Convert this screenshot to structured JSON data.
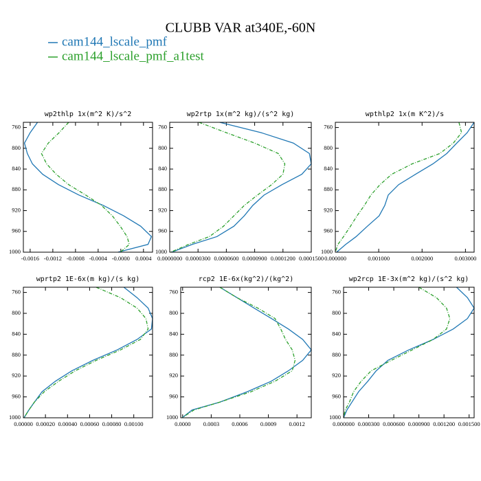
{
  "title": "CLUBB VAR at340E,-60N",
  "legend": [
    {
      "name": "cam144_lscale_pmf",
      "color": "#1f77b4"
    },
    {
      "name": "cam144_lscale_pmf_a1test",
      "color": "#2ca02c"
    }
  ],
  "chart_data": [
    {
      "type": "line",
      "title": "wp2thlp  1x(m^2 K)/s^2",
      "y": [
        750,
        770,
        790,
        810,
        830,
        850,
        870,
        890,
        910,
        930,
        950,
        970,
        985,
        1000
      ],
      "series": [
        {
          "color": "#1f77b4",
          "values": [
            -0.00147,
            -0.0016,
            -0.0017,
            -0.00165,
            -0.00156,
            -0.00138,
            -0.0011,
            -0.00074,
            -0.00031,
            5e-05,
            0.00035,
            0.00054,
            0.00048,
            -5e-05
          ]
        },
        {
          "color": "#2ca02c",
          "linestyle": "dashed",
          "values": [
            -0.00092,
            -0.00109,
            -0.00128,
            -0.0014,
            -0.00131,
            -0.00114,
            -0.00092,
            -0.00062,
            -0.00034,
            -0.00015,
            -1e-05,
            0.00011,
            0.00015,
            -1e-05
          ]
        }
      ],
      "xlim": [
        -0.00172,
        0.00056
      ],
      "xticks": [
        -0.0016,
        -0.0012,
        -0.0008,
        -0.0004,
        {
          "value": 0,
          "label": "-0.0000"
        },
        0.0004
      ],
      "ylim": [
        750,
        1000
      ],
      "yticks": [
        760,
        800,
        840,
        880,
        920,
        960,
        1000
      ],
      "y_inverted": true
    },
    {
      "type": "line",
      "title": "wp2rtp  1x(m^2 kg)/(s^2 kg)",
      "y": [
        750,
        770,
        790,
        810,
        830,
        850,
        870,
        890,
        910,
        930,
        950,
        970,
        985,
        1000
      ],
      "series": [
        {
          "color": "#1f77b4",
          "values": [
            5.3e-05,
            9.7e-05,
            0.000131,
            0.000148,
            0.00015,
            0.00014,
            0.000119,
            0.0001,
            8.8e-05,
            7.9e-05,
            6.8e-05,
            5e-05,
            2.4e-05,
            2e-06
          ]
        },
        {
          "color": "#2ca02c",
          "linestyle": "dashed",
          "values": [
            3.1e-05,
            6e-05,
            9e-05,
            0.000115,
            0.000122,
            0.00012,
            0.000108,
            9.3e-05,
            7.9e-05,
            6.8e-05,
            5.7e-05,
            4.2e-05,
            2e-05,
            1e-06
          ]
        }
      ],
      "xlim": [
        0,
        0.00015
      ],
      "xticks": [
        {
          "value": 0,
          "label": "0.0000000"
        },
        {
          "value": 3e-05,
          "label": "0.0000300"
        },
        {
          "value": 6e-05,
          "label": "0.0000600"
        },
        {
          "value": 9e-05,
          "label": "0.0000900"
        },
        {
          "value": 0.00012,
          "label": "0.0001200"
        },
        {
          "value": 0.00015,
          "label": "0.0001500"
        }
      ],
      "ylim": [
        750,
        1000
      ],
      "yticks": [
        760,
        800,
        840,
        880,
        920,
        960,
        1000
      ],
      "y_inverted": true
    },
    {
      "type": "line",
      "title": "wpthlp2  1x(m K^2)/s",
      "y": [
        750,
        770,
        790,
        810,
        830,
        850,
        870,
        890,
        910,
        930,
        950,
        970,
        985,
        1000
      ],
      "series": [
        {
          "color": "#1f77b4",
          "values": [
            0.0032,
            0.00304,
            0.0028,
            0.00257,
            0.00225,
            0.00185,
            0.00146,
            0.00122,
            0.00114,
            0.00101,
            0.00074,
            0.00048,
            0.00024,
            3e-05
          ]
        },
        {
          "color": "#2ca02c",
          "linestyle": "dashed",
          "values": [
            0.00285,
            0.00291,
            0.00272,
            0.00241,
            0.00177,
            0.0013,
            0.00103,
            0.00082,
            0.00067,
            0.0005,
            0.00035,
            0.00019,
            6e-05,
            0
          ]
        }
      ],
      "xlim": [
        0,
        0.0032
      ],
      "xticks": [
        {
          "value": 0,
          "label": "0.000000"
        },
        {
          "value": 0.001,
          "label": "0.001000"
        },
        {
          "value": 0.002,
          "label": "0.002000"
        },
        {
          "value": 0.003,
          "label": "0.003000"
        }
      ],
      "ylim": [
        750,
        1000
      ],
      "yticks": [
        760,
        800,
        840,
        880,
        920,
        960,
        1000
      ],
      "y_inverted": true
    },
    {
      "type": "line",
      "title": "wprtp2  1E-6x(m kg)/(s kg)",
      "y": [
        750,
        770,
        790,
        810,
        830,
        850,
        870,
        890,
        910,
        930,
        950,
        970,
        985,
        1000
      ],
      "series": [
        {
          "color": "#1f77b4",
          "values": [
            0.00091,
            0.00103,
            0.00113,
            0.00117,
            0.00116,
            0.00103,
            0.00085,
            0.00063,
            0.00044,
            0.00029,
            0.00017,
            0.0001,
            5e-05,
            6e-06
          ]
        },
        {
          "color": "#2ca02c",
          "linestyle": "dashed",
          "values": [
            0.00066,
            0.00088,
            0.00103,
            0.00111,
            0.00113,
            0.00106,
            0.00088,
            0.00066,
            0.00047,
            0.00032,
            0.00019,
            0.0001,
            5e-05,
            6e-06
          ]
        }
      ],
      "xlim": [
        0,
        0.00117
      ],
      "xticks": [
        {
          "value": 0,
          "label": "0.00000"
        },
        {
          "value": 0.0002,
          "label": "0.00020"
        },
        {
          "value": 0.0004,
          "label": "0.00040"
        },
        {
          "value": 0.0006,
          "label": "0.00060"
        },
        {
          "value": 0.0008,
          "label": "0.00080"
        },
        {
          "value": 0.001,
          "label": "0.00100"
        }
      ],
      "ylim": [
        750,
        1000
      ],
      "yticks": [
        760,
        800,
        840,
        880,
        920,
        960,
        1000
      ],
      "y_inverted": true
    },
    {
      "type": "line",
      "title": "rcp2  1E-6x(kg^2)/(kg^2)",
      "y": [
        750,
        770,
        790,
        810,
        830,
        850,
        870,
        890,
        910,
        930,
        950,
        970,
        985,
        1000
      ],
      "series": [
        {
          "color": "#1f77b4",
          "values": [
            0.000391,
            0.000571,
            0.000751,
            0.000932,
            0.00111,
            0.00126,
            0.00135,
            0.00126,
            0.00111,
            0.00093,
            0.00068,
            0.00039,
            0.0001,
            -6e-06
          ]
        },
        {
          "color": "#2ca02c",
          "linestyle": "dashed",
          "values": [
            0.00039,
            0.00057,
            0.00079,
            0.00097,
            0.00103,
            0.00108,
            0.00115,
            0.00118,
            0.00115,
            0.00097,
            0.00072,
            0.00039,
            0.00012,
            -6e-06
          ]
        }
      ],
      "xlim": [
        -2e-05,
        0.00135
      ],
      "xticks": [
        {
          "value": 0,
          "label": "0.0000"
        },
        0.0003,
        0.0006,
        0.0009,
        0.0012
      ],
      "ylim": [
        750,
        1000
      ],
      "yticks": [
        760,
        800,
        840,
        880,
        920,
        960,
        1000
      ],
      "y_inverted": true
    },
    {
      "type": "line",
      "title": "wp2rcp  1E-3x(m^2 kg)/(s^2 kg)",
      "y": [
        750,
        770,
        790,
        810,
        830,
        850,
        870,
        890,
        910,
        930,
        950,
        970,
        985,
        1000
      ],
      "series": [
        {
          "color": "#1f77b4",
          "values": [
            0.00135,
            0.00148,
            0.00156,
            0.00148,
            0.00131,
            0.00107,
            0.00078,
            0.00053,
            0.00039,
            0.00029,
            0.00018,
            0.0001,
            4e-05,
            0
          ]
        },
        {
          "color": "#2ca02c",
          "linestyle": "dashed",
          "values": [
            0.0009,
            0.00111,
            0.00123,
            0.00127,
            0.00123,
            0.00107,
            0.00082,
            0.00057,
            0.00033,
            0.00021,
            0.00012,
            7e-05,
            2e-05,
            0
          ]
        }
      ],
      "xlim": [
        0,
        0.00156
      ],
      "xticks": [
        {
          "value": 0,
          "label": "0.000000"
        },
        {
          "value": 0.0003,
          "label": "0.000300"
        },
        {
          "value": 0.0006,
          "label": "0.000600"
        },
        {
          "value": 0.0009,
          "label": "0.000900"
        },
        {
          "value": 0.0012,
          "label": "0.001200"
        },
        {
          "value": 0.0015,
          "label": "0.001500"
        }
      ],
      "ylim": [
        750,
        1000
      ],
      "yticks": [
        760,
        800,
        840,
        880,
        920,
        960,
        1000
      ],
      "y_inverted": true
    }
  ]
}
